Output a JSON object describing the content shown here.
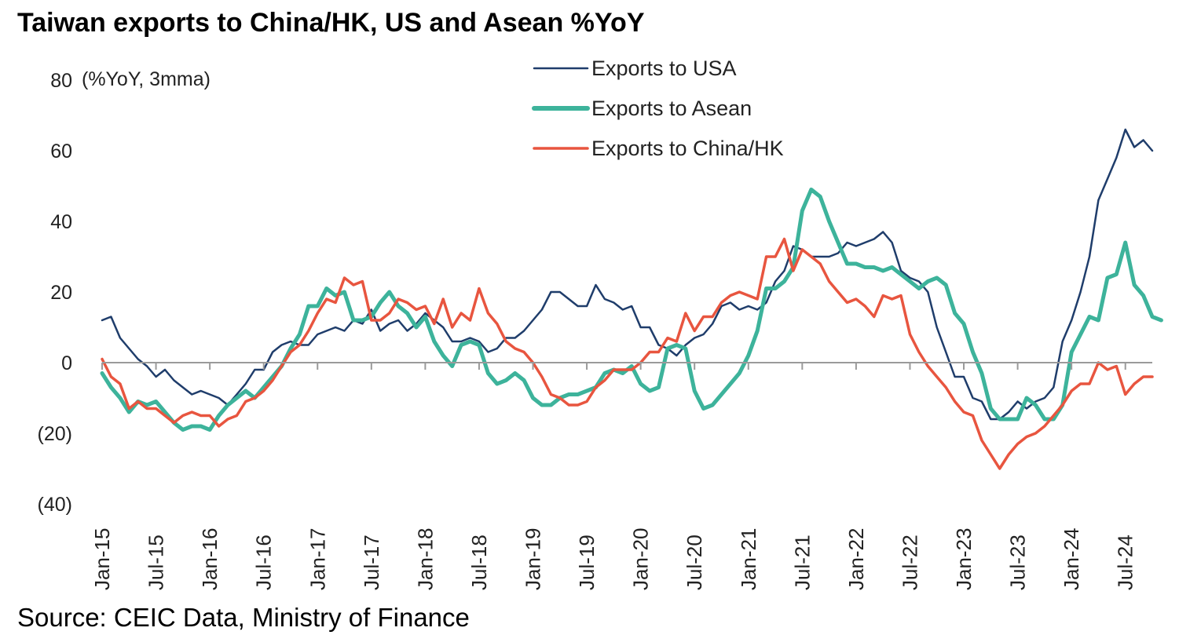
{
  "title": "Taiwan exports to China/HK, US and Asean %YoY",
  "source": "Source: CEIC Data, Ministry of Finance",
  "chart_data": {
    "type": "line",
    "unit_label": "(%YoY, 3mma)",
    "ylim": [
      -40,
      80
    ],
    "yticks": [
      80,
      60,
      40,
      20,
      0,
      -20,
      -40
    ],
    "ytick_labels": [
      "80",
      "60",
      "40",
      "20",
      "0",
      "(20)",
      "(40)"
    ],
    "x_start": "Jan-15",
    "x_end": "Jul-24",
    "xtick_labels": [
      "Jan-15",
      "Jul-15",
      "Jan-16",
      "Jul-16",
      "Jan-17",
      "Jul-17",
      "Jan-18",
      "Jul-18",
      "Jan-19",
      "Jul-19",
      "Jan-20",
      "Jul-20",
      "Jan-21",
      "Jul-21",
      "Jan-22",
      "Jul-22",
      "Jan-23",
      "Jul-23",
      "Jan-24",
      "Jul-24"
    ],
    "legend_position": "top-center",
    "grid": false,
    "series": [
      {
        "name": "Exports to USA",
        "color": "#1f3d6b",
        "values": [
          12,
          13,
          7,
          4,
          1,
          -1,
          -4,
          -2,
          -5,
          -7,
          -9,
          -8,
          -9,
          -10,
          -12,
          -9,
          -6,
          -2,
          -2,
          3,
          5,
          6,
          5,
          5,
          8,
          9,
          10,
          9,
          12,
          11,
          15,
          9,
          11,
          12,
          9,
          11,
          14,
          12,
          10,
          6,
          6,
          7,
          6,
          3,
          4,
          7,
          7,
          9,
          12,
          15,
          20,
          20,
          18,
          16,
          16,
          22,
          18,
          17,
          15,
          16,
          10,
          10,
          5,
          4,
          2,
          5,
          7,
          8,
          11,
          16,
          17,
          15,
          16,
          15,
          17,
          23,
          26,
          33,
          32,
          30,
          30,
          30,
          31,
          34,
          33,
          34,
          35,
          37,
          34,
          26,
          24,
          23,
          20,
          10,
          3,
          -4,
          -4,
          -10,
          -11,
          -16,
          -16,
          -14,
          -11,
          -13,
          -11,
          -10,
          -7,
          6,
          12,
          20,
          30,
          46,
          52,
          58,
          66,
          61,
          63,
          60
        ]
      },
      {
        "name": "Exports to Asean",
        "color": "#3db39b",
        "values": [
          -3,
          -7,
          -10,
          -14,
          -11,
          -12,
          -11,
          -14,
          -17,
          -19,
          -18,
          -18,
          -19,
          -15,
          -12,
          -10,
          -8,
          -10,
          -7,
          -4,
          -1,
          4,
          8,
          16,
          16,
          21,
          19,
          20,
          12,
          12,
          13,
          17,
          20,
          16,
          14,
          10,
          13,
          6,
          2,
          -1,
          5,
          6,
          5,
          -3,
          -6,
          -5,
          -3,
          -5,
          -10,
          -12,
          -12,
          -10,
          -9,
          -9,
          -8,
          -7,
          -3,
          -2,
          -3,
          -1,
          -6,
          -8,
          -7,
          4,
          5,
          4,
          -8,
          -13,
          -12,
          -9,
          -6,
          -3,
          2,
          9,
          21,
          21,
          23,
          27,
          43,
          49,
          47,
          40,
          34,
          28,
          28,
          27,
          27,
          26,
          27,
          25,
          23,
          21,
          23,
          24,
          22,
          14,
          11,
          3,
          -3,
          -13,
          -16,
          -16,
          -16,
          -10,
          -12,
          -16,
          -16,
          -12,
          3,
          8,
          13,
          12,
          24,
          25,
          34,
          22,
          19,
          13,
          12
        ]
      },
      {
        "name": "Exports to China/HK",
        "color": "#e8553f",
        "values": [
          1,
          -4,
          -6,
          -13,
          -11,
          -13,
          -13,
          -15,
          -17,
          -15,
          -14,
          -15,
          -15,
          -18,
          -16,
          -15,
          -11,
          -10,
          -8,
          -5,
          -1,
          3,
          5,
          9,
          14,
          18,
          17,
          24,
          22,
          23,
          12,
          12,
          14,
          18,
          17,
          15,
          16,
          11,
          18,
          10,
          14,
          12,
          21,
          14,
          11,
          6,
          4,
          3,
          0,
          -4,
          -9,
          -10,
          -12,
          -12,
          -11,
          -7,
          -5,
          -2,
          -2,
          -2,
          0,
          3,
          3,
          7,
          6,
          14,
          9,
          13,
          13,
          17,
          19,
          20,
          19,
          18,
          30,
          30,
          35,
          26,
          32,
          30,
          28,
          23,
          20,
          17,
          18,
          16,
          13,
          19,
          18,
          19,
          8,
          3,
          -1,
          -4,
          -7,
          -11,
          -14,
          -15,
          -22,
          -26,
          -30,
          -26,
          -23,
          -21,
          -20,
          -18,
          -15,
          -12,
          -8,
          -6,
          -6,
          0,
          -2,
          -1,
          -9,
          -6,
          -4,
          -4
        ]
      }
    ]
  }
}
